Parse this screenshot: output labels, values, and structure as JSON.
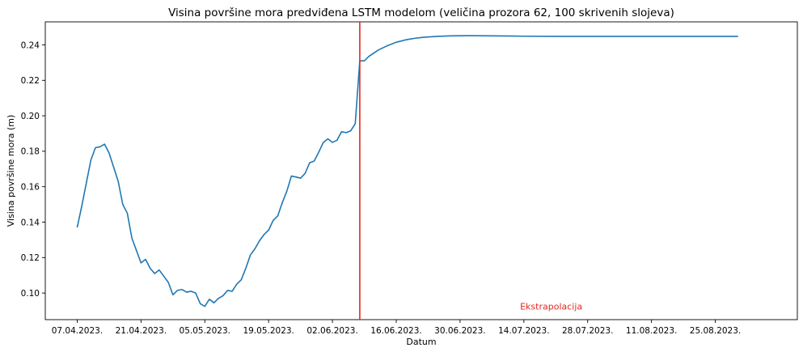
{
  "chart_data": {
    "type": "line",
    "title": "Visina površine mora predviđena LSTM modelom (veličina prozora 62, 100 skrivenih slojeva)",
    "xlabel": "Datum",
    "ylabel": "Visina površine mora (m)",
    "x_start": "2023-04-07",
    "xlim": [
      "2023-03-31",
      "2023-09-12"
    ],
    "ylim": [
      0.085,
      0.253
    ],
    "grid": false,
    "x_ticks": [
      {
        "date": "2023-04-07",
        "label": "07.04.2023."
      },
      {
        "date": "2023-04-21",
        "label": "21.04.2023."
      },
      {
        "date": "2023-05-05",
        "label": "05.05.2023."
      },
      {
        "date": "2023-05-19",
        "label": "19.05.2023."
      },
      {
        "date": "2023-06-02",
        "label": "02.06.2023."
      },
      {
        "date": "2023-06-16",
        "label": "16.06.2023."
      },
      {
        "date": "2023-06-30",
        "label": "30.06.2023."
      },
      {
        "date": "2023-07-14",
        "label": "14.07.2023."
      },
      {
        "date": "2023-07-28",
        "label": "28.07.2023."
      },
      {
        "date": "2023-08-11",
        "label": "11.08.2023."
      },
      {
        "date": "2023-08-25",
        "label": "25.08.2023."
      }
    ],
    "y_ticks": [
      {
        "value": 0.1,
        "label": "0.10"
      },
      {
        "value": 0.12,
        "label": "0.12"
      },
      {
        "value": 0.14,
        "label": "0.14"
      },
      {
        "value": 0.16,
        "label": "0.16"
      },
      {
        "value": 0.18,
        "label": "0.18"
      },
      {
        "value": 0.2,
        "label": "0.20"
      },
      {
        "value": 0.22,
        "label": "0.22"
      },
      {
        "value": 0.24,
        "label": "0.24"
      }
    ],
    "vline": {
      "date": "2023-06-08",
      "color": "#e5261f"
    },
    "annotation": {
      "text": "Ekstrapolacija",
      "date": "2023-07-20",
      "y": 0.0925,
      "color": "#e5261f"
    },
    "series": [
      {
        "color": "#1f77b4",
        "points": [
          [
            "2023-04-07",
            0.137
          ],
          [
            "2023-04-08",
            0.149
          ],
          [
            "2023-04-09",
            0.162
          ],
          [
            "2023-04-10",
            0.175
          ],
          [
            "2023-04-11",
            0.182
          ],
          [
            "2023-04-12",
            0.1825
          ],
          [
            "2023-04-13",
            0.184
          ],
          [
            "2023-04-14",
            0.179
          ],
          [
            "2023-04-15",
            0.171
          ],
          [
            "2023-04-16",
            0.163
          ],
          [
            "2023-04-17",
            0.15
          ],
          [
            "2023-04-18",
            0.145
          ],
          [
            "2023-04-19",
            0.131
          ],
          [
            "2023-04-20",
            0.124
          ],
          [
            "2023-04-21",
            0.117
          ],
          [
            "2023-04-22",
            0.119
          ],
          [
            "2023-04-23",
            0.114
          ],
          [
            "2023-04-24",
            0.111
          ],
          [
            "2023-04-25",
            0.113
          ],
          [
            "2023-04-26",
            0.1095
          ],
          [
            "2023-04-27",
            0.106
          ],
          [
            "2023-04-28",
            0.099
          ],
          [
            "2023-04-29",
            0.1015
          ],
          [
            "2023-04-30",
            0.102
          ],
          [
            "2023-05-01",
            0.1005
          ],
          [
            "2023-05-02",
            0.101
          ],
          [
            "2023-05-03",
            0.1
          ],
          [
            "2023-05-04",
            0.094
          ],
          [
            "2023-05-05",
            0.0925
          ],
          [
            "2023-05-06",
            0.0965
          ],
          [
            "2023-05-07",
            0.0945
          ],
          [
            "2023-05-08",
            0.097
          ],
          [
            "2023-05-09",
            0.0985
          ],
          [
            "2023-05-10",
            0.1015
          ],
          [
            "2023-05-11",
            0.101
          ],
          [
            "2023-05-12",
            0.105
          ],
          [
            "2023-05-13",
            0.1075
          ],
          [
            "2023-05-14",
            0.114
          ],
          [
            "2023-05-15",
            0.1215
          ],
          [
            "2023-05-16",
            0.125
          ],
          [
            "2023-05-17",
            0.1295
          ],
          [
            "2023-05-18",
            0.133
          ],
          [
            "2023-05-19",
            0.1355
          ],
          [
            "2023-05-20",
            0.141
          ],
          [
            "2023-05-21",
            0.1435
          ],
          [
            "2023-05-22",
            0.151
          ],
          [
            "2023-05-23",
            0.1575
          ],
          [
            "2023-05-24",
            0.166
          ],
          [
            "2023-05-25",
            0.1655
          ],
          [
            "2023-05-26",
            0.1648
          ],
          [
            "2023-05-27",
            0.1675
          ],
          [
            "2023-05-28",
            0.1735
          ],
          [
            "2023-05-29",
            0.1745
          ],
          [
            "2023-05-30",
            0.1795
          ],
          [
            "2023-05-31",
            0.185
          ],
          [
            "2023-06-01",
            0.187
          ],
          [
            "2023-06-02",
            0.185
          ],
          [
            "2023-06-03",
            0.1862
          ],
          [
            "2023-06-04",
            0.191
          ],
          [
            "2023-06-05",
            0.1905
          ],
          [
            "2023-06-06",
            0.1915
          ],
          [
            "2023-06-07",
            0.1955
          ],
          [
            "2023-06-08",
            0.231
          ],
          [
            "2023-06-09",
            0.231
          ],
          [
            "2023-06-10",
            0.2335
          ],
          [
            "2023-06-12",
            0.237
          ],
          [
            "2023-06-14",
            0.2395
          ],
          [
            "2023-06-16",
            0.2415
          ],
          [
            "2023-06-18",
            0.2428
          ],
          [
            "2023-06-20",
            0.2437
          ],
          [
            "2023-06-22",
            0.2443
          ],
          [
            "2023-06-25",
            0.2448
          ],
          [
            "2023-06-28",
            0.2451
          ],
          [
            "2023-07-02",
            0.2452
          ],
          [
            "2023-07-07",
            0.2451
          ],
          [
            "2023-07-14",
            0.2449
          ],
          [
            "2023-07-21",
            0.2448
          ],
          [
            "2023-08-01",
            0.2448
          ],
          [
            "2023-08-15",
            0.2448
          ],
          [
            "2023-08-30",
            0.2448
          ]
        ]
      }
    ]
  }
}
